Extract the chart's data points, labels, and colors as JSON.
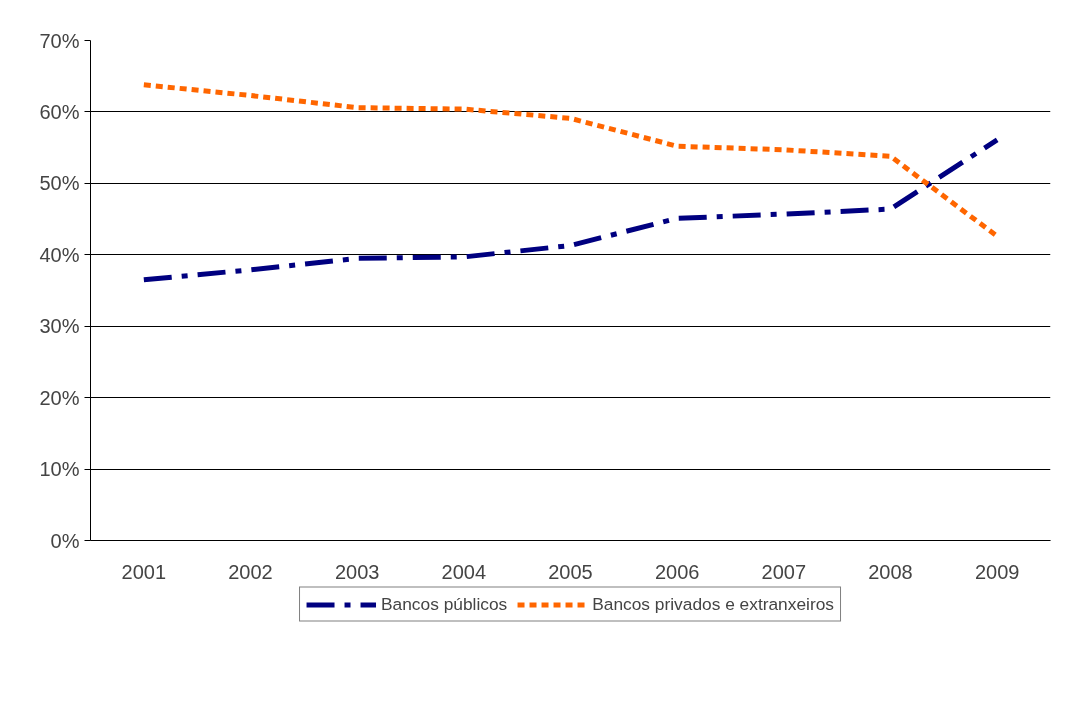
{
  "chart_data": {
    "type": "line",
    "categories": [
      "2001",
      "2002",
      "2003",
      "2004",
      "2005",
      "2006",
      "2007",
      "2008",
      "2009"
    ],
    "series": [
      {
        "name": "Bancos públicos",
        "color": "#000080",
        "line_style": "dashed",
        "values": [
          36.5,
          37.9,
          39.5,
          39.7,
          41.3,
          45.1,
          45.7,
          46.4,
          56.1
        ]
      },
      {
        "name": "Bancos privados e extranxeiros",
        "color": "#ff6600",
        "line_style": "dotted",
        "values": [
          63.8,
          62.3,
          60.6,
          60.4,
          59.1,
          55.2,
          54.7,
          53.8,
          42.6
        ]
      }
    ],
    "ylim": [
      0,
      70
    ],
    "yticks": [
      {
        "value": 0,
        "label": "0%"
      },
      {
        "value": 10,
        "label": "10%"
      },
      {
        "value": 20,
        "label": "20%"
      },
      {
        "value": 30,
        "label": "30%"
      },
      {
        "value": 40,
        "label": "40%"
      },
      {
        "value": 50,
        "label": "50%"
      },
      {
        "value": 60,
        "label": "60%"
      },
      {
        "value": 70,
        "label": "70%"
      }
    ],
    "grid": "y",
    "legend": "bottom",
    "marker": "none"
  }
}
